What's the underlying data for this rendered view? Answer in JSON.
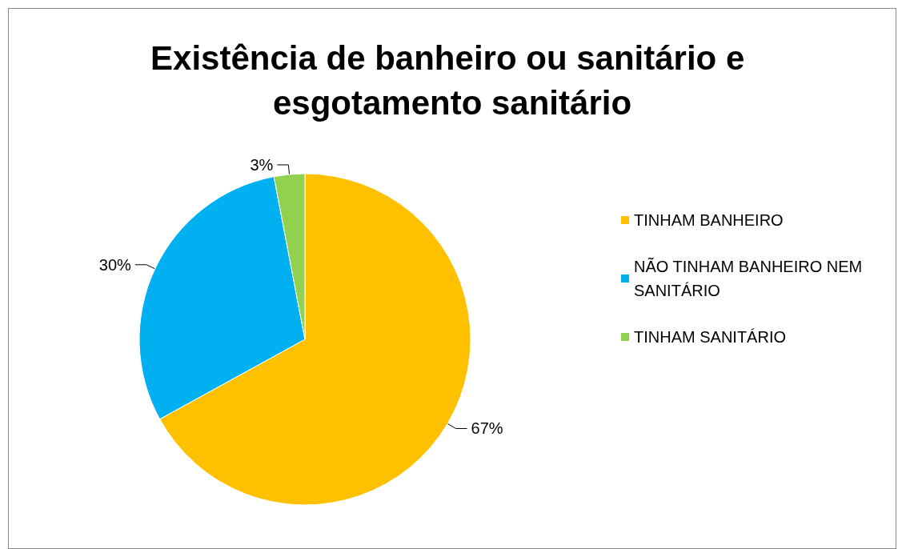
{
  "chart_data": {
    "type": "pie",
    "title": "Existência de banheiro ou sanitário e esgotamento sanitário",
    "categories": [
      "TINHAM BANHEIRO",
      "NÃO TINHAM BANHEIRO NEM SANITÁRIO",
      "TINHAM SANITÁRIO"
    ],
    "values": [
      67,
      30,
      3
    ],
    "colors": [
      "#ffc000",
      "#00b0f0",
      "#92d050"
    ],
    "value_labels": [
      "67%",
      "30%",
      "3%"
    ],
    "legend": "right"
  }
}
